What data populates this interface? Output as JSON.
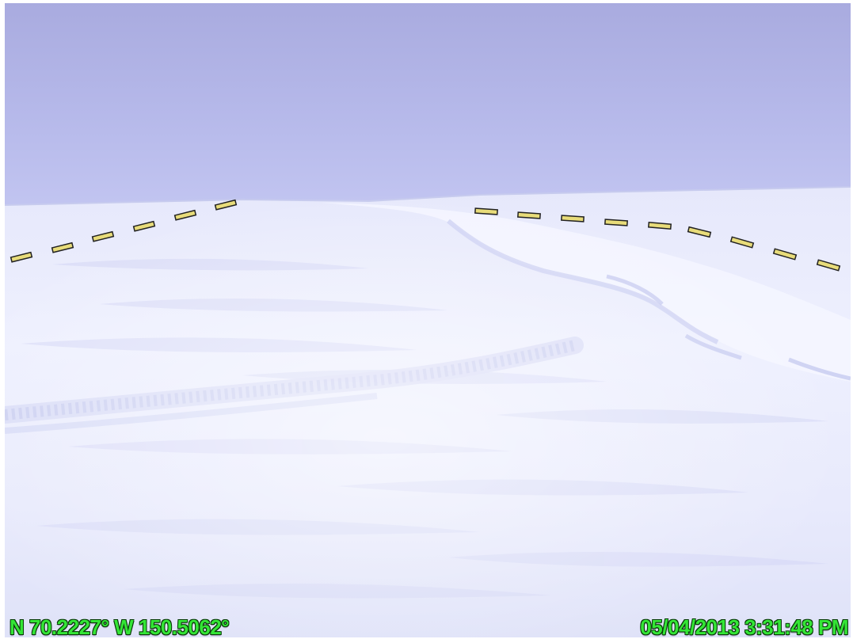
{
  "overlay": {
    "coordinates": "N 70.2227° W 150.5062°",
    "timestamp": "05/04/2013 3:31:48 PM",
    "text_color": "#34e636"
  },
  "scene": {
    "sky_color": "#b3b6e6",
    "snow_color": "#eef0fd",
    "shadow_color": "#c9cdf2",
    "marker_fill": "#e8dc7a",
    "marker_stroke": "#222222"
  }
}
